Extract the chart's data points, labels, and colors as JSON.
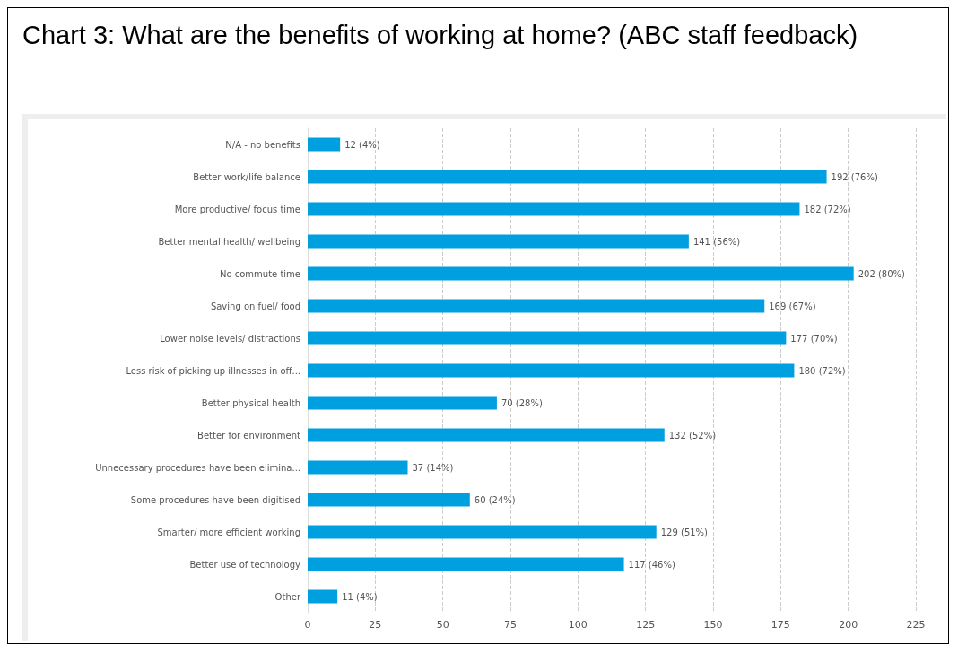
{
  "chart_data": {
    "type": "bar",
    "orientation": "horizontal",
    "title": "Chart 3: What are the benefits of working at home? (ABC staff feedback)",
    "categories": [
      "N/A - no benefits",
      "Better work/life balance",
      "More productive/ focus time",
      "Better mental health/ wellbeing",
      "No commute time",
      "Saving on fuel/ food",
      "Lower noise levels/ distractions",
      "Less risk of picking up illnesses in off...",
      "Better physical health",
      "Better for environment",
      "Unnecessary procedures have been elimina...",
      "Some procedures have been digitised",
      "Smarter/ more efficient working",
      "Better use of technology",
      "Other"
    ],
    "values": [
      12,
      192,
      182,
      141,
      202,
      169,
      177,
      180,
      70,
      132,
      37,
      60,
      129,
      117,
      11
    ],
    "value_labels": [
      "12 (4%)",
      "192 (76%)",
      "182 (72%)",
      "141 (56%)",
      "202 (80%)",
      "169 (67%)",
      "177 (70%)",
      "180 (72%)",
      "70 (28%)",
      "132 (52%)",
      "37 (14%)",
      "60 (24%)",
      "129 (51%)",
      "117 (46%)",
      "11 (4%)"
    ],
    "color": "#009fdf",
    "xlim": [
      0,
      225
    ],
    "xticks": [
      0,
      25,
      50,
      75,
      100,
      125,
      150,
      175,
      200,
      225
    ],
    "grid": "x"
  }
}
